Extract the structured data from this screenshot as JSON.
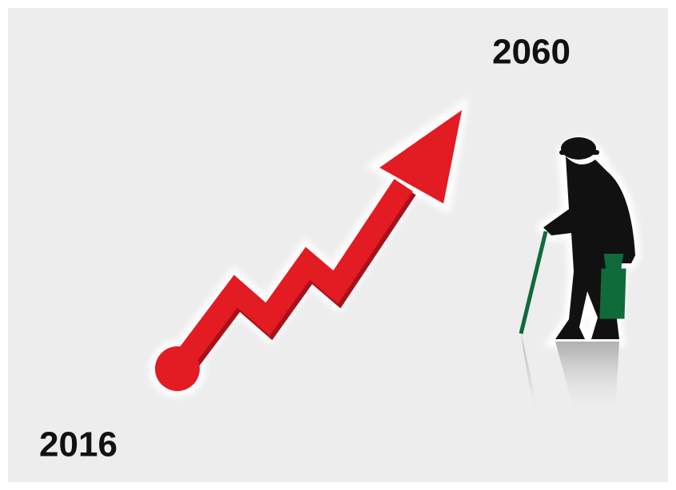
{
  "labels": {
    "start_year": "2016",
    "end_year": "2060"
  }
}
